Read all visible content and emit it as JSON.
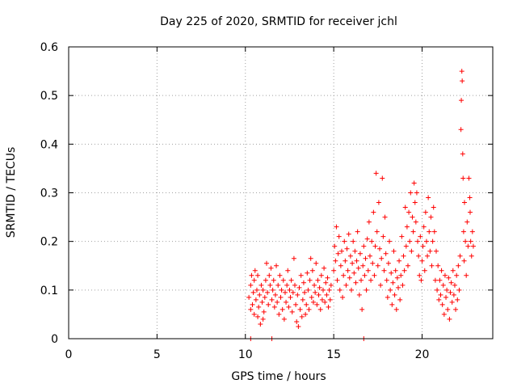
{
  "chart_data": {
    "type": "scatter",
    "title": "Day 225 of 2020, SRMTID for receiver jchl",
    "xlabel": "GPS time / hours",
    "ylabel": "SRMTID / TECUs",
    "xlim": [
      0,
      24
    ],
    "ylim": [
      0,
      0.6
    ],
    "xticks": [
      0,
      5,
      10,
      15,
      20
    ],
    "yticks": [
      0,
      0.1,
      0.2,
      0.3,
      0.4,
      0.5,
      0.6
    ],
    "xtick_labels": [
      "0",
      "5",
      "10",
      "15",
      "20"
    ],
    "ytick_labels": [
      "0",
      "0.1",
      "0.2",
      "0.3",
      "0.4",
      "0.5",
      "0.6"
    ],
    "grid": true,
    "marker": "+",
    "color": "#ff0000",
    "series": [
      {
        "name": "SRMTID",
        "points": [
          [
            10.2,
            0.085
          ],
          [
            10.3,
            0.06
          ],
          [
            10.3,
            0.11
          ],
          [
            10.35,
            0.13
          ],
          [
            10.4,
            0.07
          ],
          [
            10.45,
            0.095
          ],
          [
            10.5,
            0.05
          ],
          [
            10.5,
            0.12
          ],
          [
            10.55,
            0.14
          ],
          [
            10.6,
            0.08
          ],
          [
            10.65,
            0.1
          ],
          [
            10.7,
            0.045
          ],
          [
            10.7,
            0.13
          ],
          [
            10.75,
            0.065
          ],
          [
            10.8,
            0.09
          ],
          [
            10.85,
            0.03
          ],
          [
            10.9,
            0.11
          ],
          [
            10.95,
            0.075
          ],
          [
            11.0,
            0.04
          ],
          [
            11.0,
            0.1
          ],
          [
            11.05,
            0.055
          ],
          [
            11.1,
            0.085
          ],
          [
            11.15,
            0.12
          ],
          [
            11.2,
            0.155
          ],
          [
            11.25,
            0.095
          ],
          [
            11.3,
            0.07
          ],
          [
            11.35,
            0.13
          ],
          [
            11.4,
            0.11
          ],
          [
            11.45,
            0.145
          ],
          [
            11.5,
            0.08
          ],
          [
            11.55,
            0.1
          ],
          [
            11.6,
            0.12
          ],
          [
            11.65,
            0.065
          ],
          [
            11.7,
            0.09
          ],
          [
            11.75,
            0.15
          ],
          [
            11.8,
            0.075
          ],
          [
            11.85,
            0.11
          ],
          [
            11.9,
            0.05
          ],
          [
            11.95,
            0.13
          ],
          [
            12.0,
            0.085
          ],
          [
            12.05,
            0.1
          ],
          [
            12.1,
            0.06
          ],
          [
            12.15,
            0.12
          ],
          [
            12.2,
            0.04
          ],
          [
            12.25,
            0.095
          ],
          [
            12.3,
            0.075
          ],
          [
            12.35,
            0.11
          ],
          [
            12.4,
            0.14
          ],
          [
            12.45,
            0.065
          ],
          [
            12.5,
            0.1
          ],
          [
            12.55,
            0.085
          ],
          [
            12.6,
            0.12
          ],
          [
            12.65,
            0.055
          ],
          [
            12.7,
            0.095
          ],
          [
            12.75,
            0.165
          ],
          [
            12.8,
            0.11
          ],
          [
            12.85,
            0.07
          ],
          [
            12.9,
            0.035
          ],
          [
            12.95,
            0.09
          ],
          [
            13.0,
            0.025
          ],
          [
            13.05,
            0.105
          ],
          [
            13.1,
            0.06
          ],
          [
            13.15,
            0.13
          ],
          [
            13.2,
            0.045
          ],
          [
            13.25,
            0.08
          ],
          [
            13.3,
            0.115
          ],
          [
            13.35,
            0.095
          ],
          [
            13.4,
            0.05
          ],
          [
            13.45,
            0.07
          ],
          [
            13.5,
            0.135
          ],
          [
            13.55,
            0.1
          ],
          [
            13.6,
            0.06
          ],
          [
            13.65,
            0.12
          ],
          [
            13.7,
            0.165
          ],
          [
            13.75,
            0.085
          ],
          [
            13.8,
            0.14
          ],
          [
            13.85,
            0.075
          ],
          [
            13.9,
            0.11
          ],
          [
            13.95,
            0.095
          ],
          [
            14.0,
            0.155
          ],
          [
            14.05,
            0.07
          ],
          [
            14.1,
            0.12
          ],
          [
            14.15,
            0.09
          ],
          [
            14.2,
            0.105
          ],
          [
            14.25,
            0.06
          ],
          [
            14.3,
            0.13
          ],
          [
            14.35,
            0.08
          ],
          [
            14.4,
            0.1
          ],
          [
            14.45,
            0.145
          ],
          [
            14.5,
            0.075
          ],
          [
            14.55,
            0.115
          ],
          [
            14.6,
            0.09
          ],
          [
            14.65,
            0.125
          ],
          [
            14.7,
            0.065
          ],
          [
            14.75,
            0.1
          ],
          [
            14.8,
            0.08
          ],
          [
            14.85,
            0.11
          ],
          [
            15.0,
            0.14
          ],
          [
            15.05,
            0.19
          ],
          [
            15.1,
            0.16
          ],
          [
            15.15,
            0.23
          ],
          [
            15.2,
            0.12
          ],
          [
            15.25,
            0.175
          ],
          [
            15.3,
            0.21
          ],
          [
            15.35,
            0.1
          ],
          [
            15.4,
            0.15
          ],
          [
            15.45,
            0.18
          ],
          [
            15.5,
            0.085
          ],
          [
            15.55,
            0.13
          ],
          [
            15.6,
            0.2
          ],
          [
            15.65,
            0.16
          ],
          [
            15.7,
            0.11
          ],
          [
            15.75,
            0.185
          ],
          [
            15.8,
            0.14
          ],
          [
            15.85,
            0.215
          ],
          [
            15.9,
            0.125
          ],
          [
            15.95,
            0.17
          ],
          [
            16.0,
            0.1
          ],
          [
            16.05,
            0.155
          ],
          [
            16.1,
            0.2
          ],
          [
            16.15,
            0.135
          ],
          [
            16.2,
            0.18
          ],
          [
            16.25,
            0.115
          ],
          [
            16.3,
            0.16
          ],
          [
            16.35,
            0.22
          ],
          [
            16.4,
            0.145
          ],
          [
            16.45,
            0.09
          ],
          [
            16.5,
            0.175
          ],
          [
            16.55,
            0.12
          ],
          [
            16.6,
            0.06
          ],
          [
            16.65,
            0.15
          ],
          [
            16.7,
            0.19
          ],
          [
            16.75,
            0.13
          ],
          [
            16.8,
            0.165
          ],
          [
            16.85,
            0.1
          ],
          [
            16.9,
            0.205
          ],
          [
            16.95,
            0.14
          ],
          [
            17.0,
            0.24
          ],
          [
            17.05,
            0.17
          ],
          [
            17.1,
            0.12
          ],
          [
            17.15,
            0.2
          ],
          [
            17.2,
            0.155
          ],
          [
            17.25,
            0.26
          ],
          [
            17.3,
            0.13
          ],
          [
            17.35,
            0.19
          ],
          [
            17.4,
            0.34
          ],
          [
            17.45,
            0.22
          ],
          [
            17.5,
            0.15
          ],
          [
            17.55,
            0.28
          ],
          [
            17.6,
            0.185
          ],
          [
            17.65,
            0.11
          ],
          [
            17.7,
            0.165
          ],
          [
            17.75,
            0.33
          ],
          [
            17.8,
            0.21
          ],
          [
            17.85,
            0.14
          ],
          [
            17.9,
            0.25
          ],
          [
            17.95,
            0.175
          ],
          [
            18.0,
            0.12
          ],
          [
            18.05,
            0.085
          ],
          [
            18.1,
            0.155
          ],
          [
            18.15,
            0.2
          ],
          [
            18.2,
            0.1
          ],
          [
            18.25,
            0.135
          ],
          [
            18.3,
            0.07
          ],
          [
            18.35,
            0.115
          ],
          [
            18.4,
            0.18
          ],
          [
            18.45,
            0.09
          ],
          [
            18.5,
            0.14
          ],
          [
            18.55,
            0.06
          ],
          [
            18.6,
            0.125
          ],
          [
            18.65,
            0.105
          ],
          [
            18.7,
            0.16
          ],
          [
            18.75,
            0.08
          ],
          [
            18.8,
            0.13
          ],
          [
            18.85,
            0.21
          ],
          [
            18.9,
            0.11
          ],
          [
            18.95,
            0.17
          ],
          [
            19.0,
            0.14
          ],
          [
            19.05,
            0.27
          ],
          [
            19.1,
            0.19
          ],
          [
            19.15,
            0.23
          ],
          [
            19.2,
            0.15
          ],
          [
            19.25,
            0.26
          ],
          [
            19.3,
            0.2
          ],
          [
            19.35,
            0.3
          ],
          [
            19.4,
            0.18
          ],
          [
            19.45,
            0.25
          ],
          [
            19.5,
            0.22
          ],
          [
            19.55,
            0.32
          ],
          [
            19.6,
            0.28
          ],
          [
            19.65,
            0.24
          ],
          [
            19.7,
            0.3
          ],
          [
            19.75,
            0.2
          ],
          [
            19.8,
            0.17
          ],
          [
            19.85,
            0.13
          ],
          [
            19.9,
            0.21
          ],
          [
            19.95,
            0.12
          ],
          [
            20.0,
            0.16
          ],
          [
            20.05,
            0.19
          ],
          [
            20.1,
            0.23
          ],
          [
            20.15,
            0.14
          ],
          [
            20.2,
            0.26
          ],
          [
            20.25,
            0.2
          ],
          [
            20.3,
            0.17
          ],
          [
            20.35,
            0.29
          ],
          [
            20.4,
            0.22
          ],
          [
            20.45,
            0.18
          ],
          [
            20.5,
            0.25
          ],
          [
            20.55,
            0.15
          ],
          [
            20.6,
            0.2
          ],
          [
            20.65,
            0.27
          ],
          [
            20.7,
            0.22
          ],
          [
            20.75,
            0.12
          ],
          [
            20.8,
            0.18
          ],
          [
            20.85,
            0.1
          ],
          [
            20.9,
            0.15
          ],
          [
            20.95,
            0.08
          ],
          [
            21.0,
            0.12
          ],
          [
            21.05,
            0.09
          ],
          [
            21.1,
            0.14
          ],
          [
            21.15,
            0.07
          ],
          [
            21.2,
            0.11
          ],
          [
            21.25,
            0.05
          ],
          [
            21.3,
            0.13
          ],
          [
            21.35,
            0.085
          ],
          [
            21.4,
            0.1
          ],
          [
            21.45,
            0.06
          ],
          [
            21.5,
            0.125
          ],
          [
            21.55,
            0.04
          ],
          [
            21.6,
            0.095
          ],
          [
            21.65,
            0.115
          ],
          [
            21.7,
            0.075
          ],
          [
            21.75,
            0.14
          ],
          [
            21.8,
            0.09
          ],
          [
            21.85,
            0.11
          ],
          [
            21.9,
            0.06
          ],
          [
            21.95,
            0.13
          ],
          [
            22.0,
            0.08
          ],
          [
            22.05,
            0.15
          ],
          [
            22.1,
            0.1
          ],
          [
            22.15,
            0.17
          ],
          [
            22.2,
            0.43
          ],
          [
            22.22,
            0.49
          ],
          [
            22.25,
            0.55
          ],
          [
            22.27,
            0.53
          ],
          [
            22.3,
            0.38
          ],
          [
            22.32,
            0.33
          ],
          [
            22.35,
            0.22
          ],
          [
            22.38,
            0.16
          ],
          [
            22.4,
            0.28
          ],
          [
            22.45,
            0.2
          ],
          [
            22.5,
            0.13
          ],
          [
            22.55,
            0.24
          ],
          [
            22.6,
            0.19
          ],
          [
            22.65,
            0.33
          ],
          [
            22.7,
            0.29
          ],
          [
            22.72,
            0.26
          ],
          [
            22.75,
            0.2
          ],
          [
            22.8,
            0.17
          ],
          [
            22.85,
            0.22
          ],
          [
            22.9,
            0.19
          ],
          [
            10.3,
            0.0
          ],
          [
            11.5,
            0.0
          ],
          [
            16.7,
            0.0
          ]
        ]
      }
    ]
  }
}
